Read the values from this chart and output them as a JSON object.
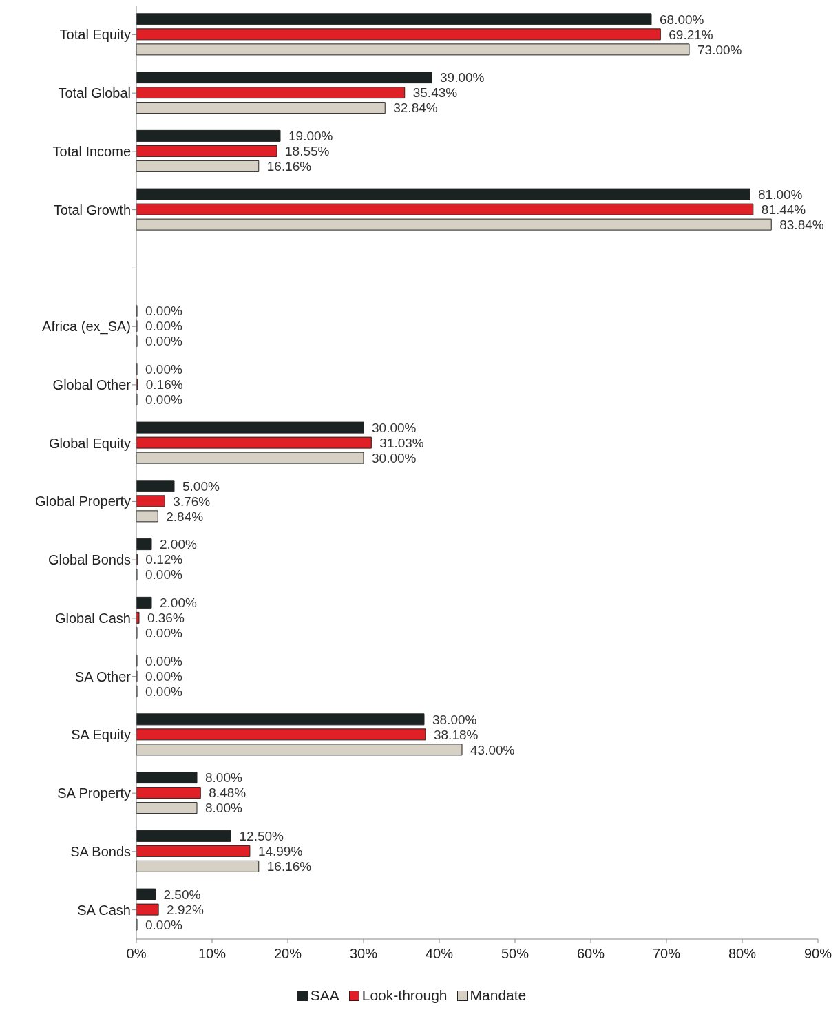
{
  "chart_data": {
    "type": "bar",
    "orientation": "horizontal",
    "categories": [
      "Total Equity",
      "Total Global",
      "Total Income",
      "Total Growth",
      null,
      "Africa (ex_SA)",
      "Global Other",
      "Global Equity",
      "Global Property",
      "Global Bonds",
      "Global Cash",
      "SA Other",
      "SA Equity",
      "SA Property",
      "SA Bonds",
      "SA Cash"
    ],
    "series": [
      {
        "name": "SAA",
        "color": "#1a2321",
        "values": [
          68,
          39,
          19,
          81,
          null,
          0,
          0,
          30,
          5,
          2,
          2,
          0,
          38,
          8,
          12.5,
          2.5
        ],
        "value_labels": [
          "68.00%",
          "39.00%",
          "19.00%",
          "81.00%",
          null,
          "0.00%",
          "0.00%",
          "30.00%",
          "5.00%",
          "2.00%",
          "2.00%",
          "0.00%",
          "38.00%",
          "8.00%",
          "12.50%",
          "2.50%"
        ]
      },
      {
        "name": "Look-through",
        "color": "#e02027",
        "values": [
          69.21,
          35.43,
          18.55,
          81.44,
          null,
          0,
          0.16,
          31.03,
          3.76,
          0.12,
          0.36,
          0,
          38.18,
          8.48,
          14.99,
          2.92
        ],
        "value_labels": [
          "69.21%",
          "35.43%",
          "18.55%",
          "81.44%",
          null,
          "0.00%",
          "0.16%",
          "31.03%",
          "3.76%",
          "0.12%",
          "0.36%",
          "0.00%",
          "38.18%",
          "8.48%",
          "14.99%",
          "2.92%"
        ]
      },
      {
        "name": "Mandate",
        "color": "#d6d1c4",
        "values": [
          73,
          32.84,
          16.16,
          83.84,
          null,
          0,
          0,
          30,
          2.84,
          0,
          0,
          0,
          43,
          8,
          16.16,
          0
        ],
        "value_labels": [
          "73.00%",
          "32.84%",
          "16.16%",
          "83.84%",
          null,
          "0.00%",
          "0.00%",
          "30.00%",
          "2.84%",
          "0.00%",
          "0.00%",
          "0.00%",
          "43.00%",
          "8.00%",
          "16.16%",
          "0.00%"
        ]
      }
    ],
    "xlim": [
      0,
      90
    ],
    "xticks": [
      {
        "value": 0,
        "label": "0%"
      },
      {
        "value": 10,
        "label": "10%"
      },
      {
        "value": 20,
        "label": "20%"
      },
      {
        "value": 30,
        "label": "30%"
      },
      {
        "value": 40,
        "label": "40%"
      },
      {
        "value": 50,
        "label": "50%"
      },
      {
        "value": 60,
        "label": "60%"
      },
      {
        "value": 70,
        "label": "70%"
      },
      {
        "value": 80,
        "label": "80%"
      },
      {
        "value": 90,
        "label": "90%"
      }
    ],
    "grid": false,
    "legend": "bottom"
  }
}
